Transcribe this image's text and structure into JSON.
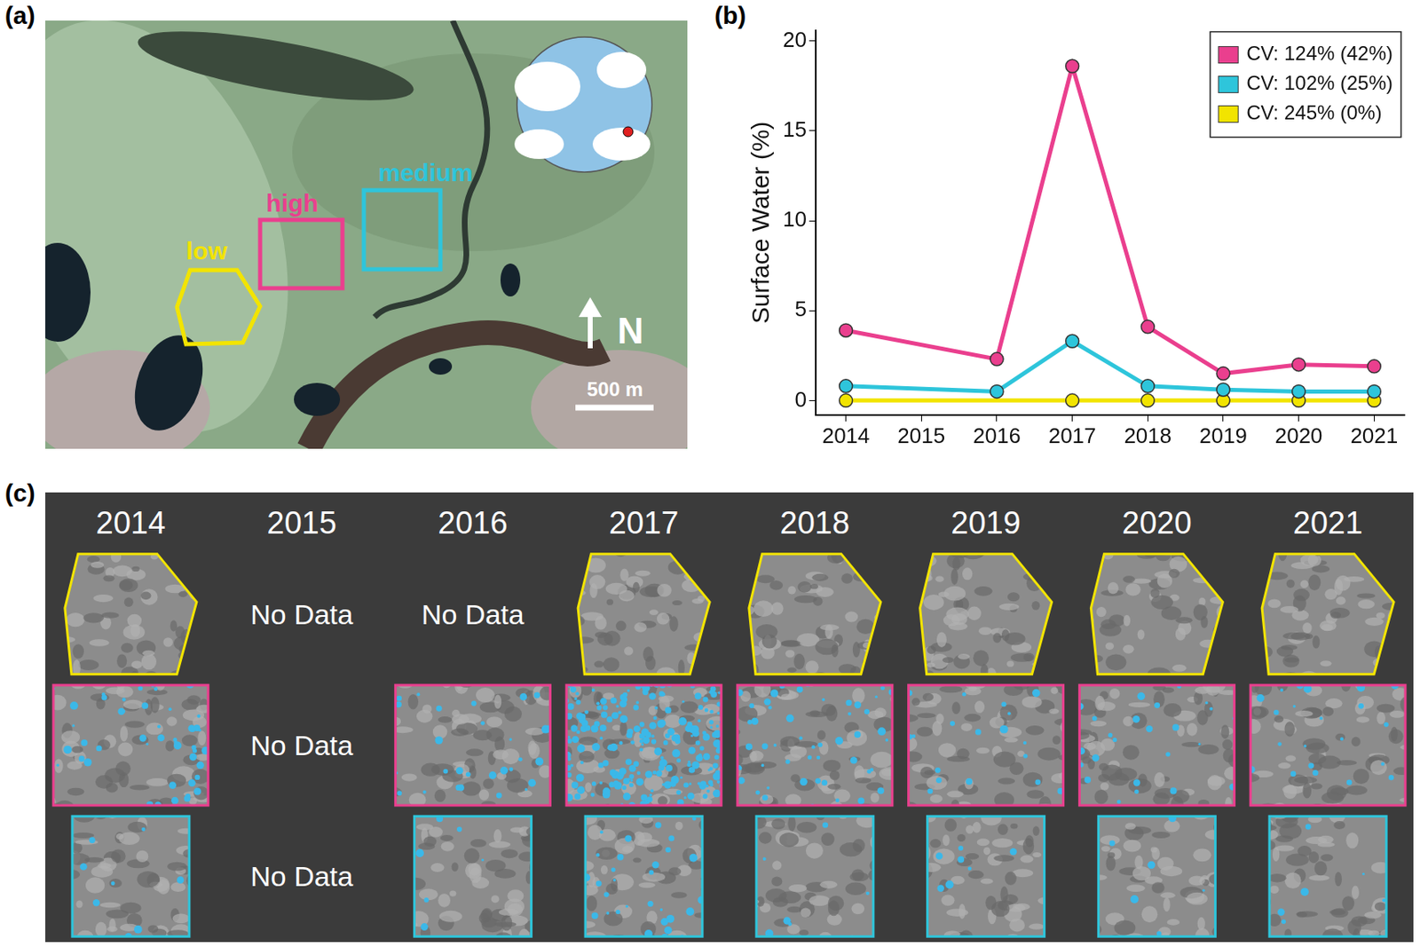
{
  "chart_data": {
    "type": "line",
    "panel_label": "(b)",
    "y_label": "Surface Water (%)",
    "x": [
      2014,
      2015,
      2016,
      2017,
      2018,
      2019,
      2020,
      2021
    ],
    "series": [
      {
        "name": "CV: 124% (42%)",
        "color": "#ea3f8e",
        "marker": "circle",
        "line_style": "solid",
        "values": [
          3.9,
          null,
          2.3,
          18.6,
          4.1,
          1.5,
          2.0,
          1.9
        ]
      },
      {
        "name": "CV: 102% (25%)",
        "color": "#2ec5db",
        "marker": "circle",
        "line_style": "solid",
        "values": [
          0.8,
          null,
          0.5,
          3.3,
          0.8,
          0.6,
          0.5,
          0.5
        ]
      },
      {
        "name": "CV: 245% (0%)",
        "color": "#f2e400",
        "marker": "circle",
        "line_style": "solid",
        "values": [
          0,
          null,
          null,
          0,
          0,
          0,
          0,
          0
        ]
      }
    ],
    "xlim": [
      2013.6,
      2021.4
    ],
    "xticks": [
      2014,
      2015,
      2016,
      2017,
      2018,
      2019,
      2020,
      2021
    ],
    "ylim": [
      -0.8,
      20.6
    ],
    "yticks": [
      0,
      5,
      10,
      15,
      20
    ],
    "grid": false,
    "legend": "upper right"
  },
  "map": {
    "panel_label": "(a)",
    "regions": [
      {
        "label": "low",
        "color": "#f2e400"
      },
      {
        "label": "high",
        "color": "#ea3f8e"
      },
      {
        "label": "medium",
        "color": "#2ec5db"
      }
    ],
    "north": "N",
    "scale_bar": "500 m"
  },
  "image_grid": {
    "panel_label": "(c)",
    "columns": [
      "2014",
      "2015",
      "2016",
      "2017",
      "2018",
      "2019",
      "2020",
      "2021"
    ],
    "rows": [
      {
        "region": "low",
        "cells": [
          null,
          "No Data",
          "No Data",
          null,
          null,
          null,
          null,
          null
        ]
      },
      {
        "region": "high",
        "cells": [
          null,
          "No Data",
          null,
          null,
          null,
          null,
          null,
          null
        ]
      },
      {
        "region": "medium",
        "cells": [
          null,
          "No Data",
          null,
          null,
          null,
          null,
          null,
          null
        ]
      }
    ]
  }
}
